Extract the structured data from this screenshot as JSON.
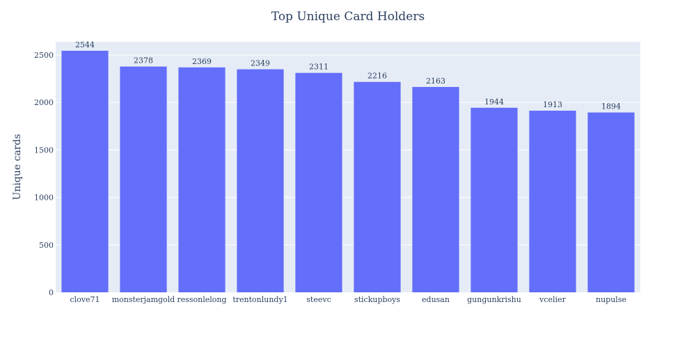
{
  "chart_data": {
    "type": "bar",
    "title": "Top Unique Card Holders",
    "xlabel": "",
    "ylabel": "Unique cards",
    "categories": [
      "clove71",
      "monsterjamgold",
      "ressonlelong",
      "trentonlundy1",
      "steevc",
      "stickupboys",
      "edusan",
      "gungunkrishu",
      "vcelier",
      "nupulse"
    ],
    "values": [
      2544,
      2378,
      2369,
      2349,
      2311,
      2216,
      2163,
      1944,
      1913,
      1894
    ],
    "ylim": [
      0,
      2639
    ],
    "yticks": [
      0,
      500,
      1000,
      1500,
      2000,
      2500
    ],
    "grid": true,
    "data_labels": true,
    "colors": {
      "bar": "#636efa",
      "plot_bg": "#e5ecf6",
      "grid": "#ffffff",
      "text": "#2a3f5f"
    }
  }
}
